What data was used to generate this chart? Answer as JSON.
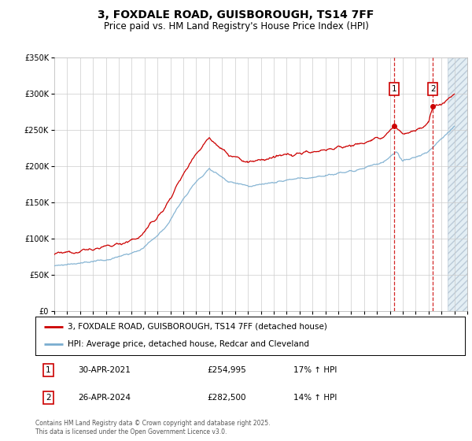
{
  "title": "3, FOXDALE ROAD, GUISBOROUGH, TS14 7FF",
  "subtitle": "Price paid vs. HM Land Registry's House Price Index (HPI)",
  "legend_line1": "3, FOXDALE ROAD, GUISBOROUGH, TS14 7FF (detached house)",
  "legend_line2": "HPI: Average price, detached house, Redcar and Cleveland",
  "transactions": [
    {
      "num": 1,
      "date": "30-APR-2021",
      "price": 254995,
      "pct": "17% ↑ HPI",
      "year": 2021.33
    },
    {
      "num": 2,
      "date": "26-APR-2024",
      "price": 282500,
      "pct": "14% ↑ HPI",
      "year": 2024.33
    }
  ],
  "footnote": "Contains HM Land Registry data © Crown copyright and database right 2025.\nThis data is licensed under the Open Government Licence v3.0.",
  "xmin": 1995,
  "xmax": 2027,
  "ymin": 0,
  "ymax": 350000,
  "future_start": 2025.5,
  "red_line_color": "#cc0000",
  "blue_line_color": "#7aadcf",
  "background_color": "#ffffff",
  "grid_color": "#cccccc",
  "marker_color": "#cc0000",
  "title_fontsize": 10,
  "subtitle_fontsize": 8.5,
  "tick_fontsize": 7,
  "legend_fontsize": 7.5,
  "table_fontsize": 7.5,
  "footnote_fontsize": 5.5
}
